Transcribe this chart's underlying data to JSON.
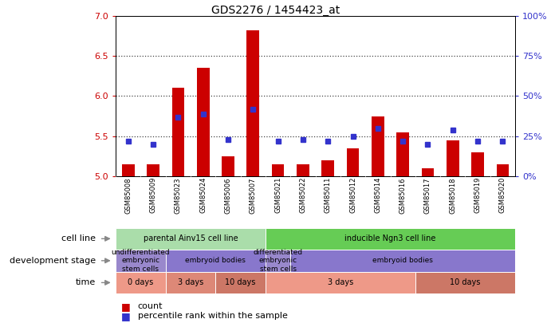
{
  "title": "GDS2276 / 1454423_at",
  "samples": [
    "GSM85008",
    "GSM85009",
    "GSM85023",
    "GSM85024",
    "GSM85006",
    "GSM85007",
    "GSM85021",
    "GSM85022",
    "GSM85011",
    "GSM85012",
    "GSM85014",
    "GSM85016",
    "GSM85017",
    "GSM85018",
    "GSM85019",
    "GSM85020"
  ],
  "count_values": [
    5.15,
    5.15,
    6.1,
    6.35,
    5.25,
    6.82,
    5.15,
    5.15,
    5.2,
    5.35,
    5.75,
    5.55,
    5.1,
    5.45,
    5.3,
    5.15
  ],
  "percentile_values": [
    22,
    20,
    37,
    39,
    23,
    42,
    22,
    23,
    22,
    25,
    30,
    22,
    20,
    29,
    22,
    22
  ],
  "ylim_left": [
    5.0,
    7.0
  ],
  "ylim_right": [
    0,
    100
  ],
  "yticks_left": [
    5.0,
    5.5,
    6.0,
    6.5,
    7.0
  ],
  "yticks_right": [
    0,
    25,
    50,
    75,
    100
  ],
  "bar_color": "#cc0000",
  "dot_color": "#3333cc",
  "bg_color": "#ffffff",
  "axis_color_left": "#cc0000",
  "axis_color_right": "#3333cc",
  "cell_line_groups": [
    {
      "label": "parental Ainv15 cell line",
      "start": 0,
      "end": 6,
      "color": "#aaddaa"
    },
    {
      "label": "inducible Ngn3 cell line",
      "start": 6,
      "end": 16,
      "color": "#66cc55"
    }
  ],
  "dev_stage_groups": [
    {
      "label": "undifferentiated\nembryonic\nstem cells",
      "start": 0,
      "end": 2,
      "color": "#9988cc"
    },
    {
      "label": "embryoid bodies",
      "start": 2,
      "end": 6,
      "color": "#8877cc"
    },
    {
      "label": "differentiated\nembryonic\nstem cells",
      "start": 6,
      "end": 7,
      "color": "#9988cc"
    },
    {
      "label": "embryoid bodies",
      "start": 7,
      "end": 16,
      "color": "#8877cc"
    }
  ],
  "time_groups": [
    {
      "label": "0 days",
      "start": 0,
      "end": 2,
      "color": "#ee9988"
    },
    {
      "label": "3 days",
      "start": 2,
      "end": 4,
      "color": "#dd8877"
    },
    {
      "label": "10 days",
      "start": 4,
      "end": 6,
      "color": "#cc7766"
    },
    {
      "label": "3 days",
      "start": 6,
      "end": 12,
      "color": "#ee9988"
    },
    {
      "label": "10 days",
      "start": 12,
      "end": 16,
      "color": "#cc7766"
    }
  ],
  "row_labels": [
    "cell line",
    "development stage",
    "time"
  ],
  "legend_count_label": "count",
  "legend_pct_label": "percentile rank within the sample",
  "xtick_label_area_color": "#c8c8c8",
  "grid_dotted_color": "#444444"
}
